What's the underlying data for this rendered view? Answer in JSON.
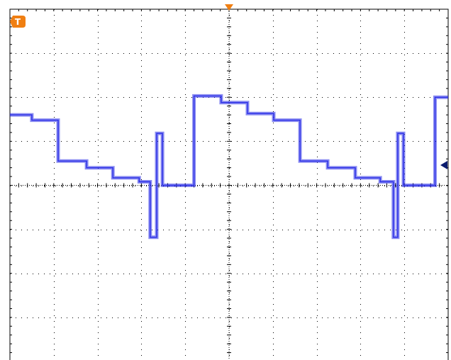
{
  "colors": {
    "background": "#ffffff",
    "grid": "#000000",
    "trace": "#2a2ee6",
    "trigger_marker": "#f07f12",
    "ground_marker": "#0b1c6e"
  },
  "icons": {
    "trigger_position": "trigger-position-marker-icon",
    "trigger_channel": "trigger-T-icon",
    "channel_ground": "channel-ground-marker-icon"
  },
  "trigger_label": "T",
  "chart_data": {
    "type": "line",
    "title": "",
    "xlabel": "",
    "ylabel": "",
    "grid": true,
    "xlim": [
      0,
      10
    ],
    "ylim": [
      -4,
      4
    ],
    "divisions": {
      "x": 10,
      "y": 8
    },
    "series": [
      {
        "values_kind": "step",
        "points": [
          [
            0.0,
            1.6
          ],
          [
            0.5,
            1.6
          ],
          [
            0.5,
            1.48
          ],
          [
            1.1,
            1.48
          ],
          [
            1.1,
            0.55
          ],
          [
            1.75,
            0.55
          ],
          [
            1.75,
            0.4
          ],
          [
            2.35,
            0.4
          ],
          [
            2.35,
            0.17
          ],
          [
            2.95,
            0.17
          ],
          [
            2.95,
            0.08
          ],
          [
            3.2,
            0.08
          ],
          [
            3.2,
            -1.18
          ],
          [
            3.35,
            -1.18
          ],
          [
            3.35,
            1.18
          ],
          [
            3.48,
            1.18
          ],
          [
            3.48,
            0.0
          ],
          [
            4.2,
            0.0
          ],
          [
            4.2,
            2.03
          ],
          [
            4.82,
            2.03
          ],
          [
            4.82,
            1.88
          ],
          [
            5.42,
            1.88
          ],
          [
            5.42,
            1.63
          ],
          [
            6.02,
            1.63
          ],
          [
            6.02,
            1.48
          ],
          [
            6.62,
            1.48
          ],
          [
            6.62,
            0.55
          ],
          [
            7.25,
            0.55
          ],
          [
            7.25,
            0.4
          ],
          [
            7.88,
            0.4
          ],
          [
            7.88,
            0.17
          ],
          [
            8.45,
            0.17
          ],
          [
            8.45,
            0.08
          ],
          [
            8.75,
            0.08
          ],
          [
            8.75,
            -1.18
          ],
          [
            8.85,
            -1.18
          ],
          [
            8.85,
            1.18
          ],
          [
            8.98,
            1.18
          ],
          [
            8.98,
            0.0
          ],
          [
            9.7,
            0.0
          ],
          [
            9.7,
            2.0
          ],
          [
            10.0,
            2.0
          ]
        ]
      }
    ],
    "ground_level": 0.44
  }
}
